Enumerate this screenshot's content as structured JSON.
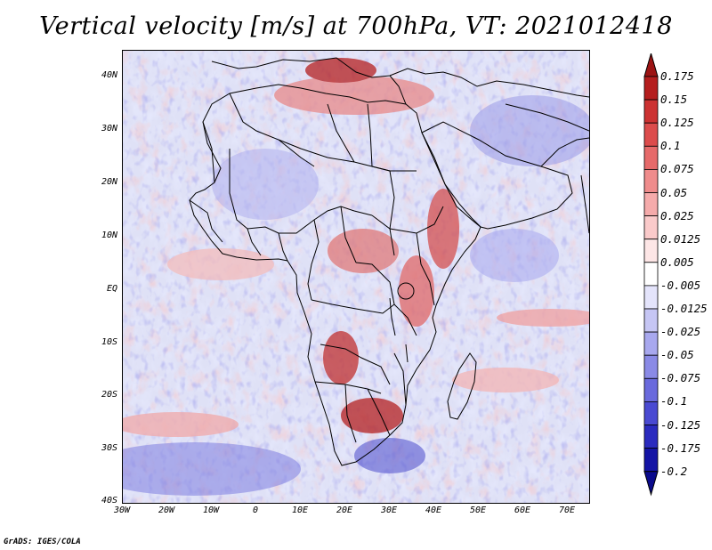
{
  "title": "Vertical velocity [m/s] at 700hPa, VT: 2021012418",
  "credit": "GrADS: IGES/COLA",
  "y_axis_labels": [
    "40N",
    "30N",
    "20N",
    "10N",
    "EQ",
    "10S",
    "20S",
    "30S",
    "40S"
  ],
  "x_axis_labels": [
    "30W",
    "20W",
    "10W",
    "0",
    "10E",
    "20E",
    "30E",
    "40E",
    "50E",
    "60E",
    "70E"
  ],
  "colorbar": {
    "labels": [
      "0.175",
      "0.15",
      "0.125",
      "0.1",
      "0.075",
      "0.05",
      "0.025",
      "0.0125",
      "0.005",
      "-0.005",
      "-0.0125",
      "-0.025",
      "-0.05",
      "-0.075",
      "-0.1",
      "-0.125",
      "-0.175",
      "-0.2"
    ],
    "colors": [
      "#9c1414",
      "#b51e1e",
      "#cc3232",
      "#dc4c4c",
      "#e66a6a",
      "#ef8c8c",
      "#f5abab",
      "#facaca",
      "#fde6e6",
      "#ffffff",
      "#e4e4fb",
      "#c6c6f4",
      "#a8a8ee",
      "#8a8ae6",
      "#6a6add",
      "#4a4ad2",
      "#2b2bbf",
      "#1414a5",
      "#0a0a8c"
    ]
  },
  "map": {
    "lon_range": [
      -30,
      75
    ],
    "lat_range": [
      -40,
      45
    ],
    "ocean_color": "#e9eaf7",
    "land_tint": "#d9dcf3"
  }
}
